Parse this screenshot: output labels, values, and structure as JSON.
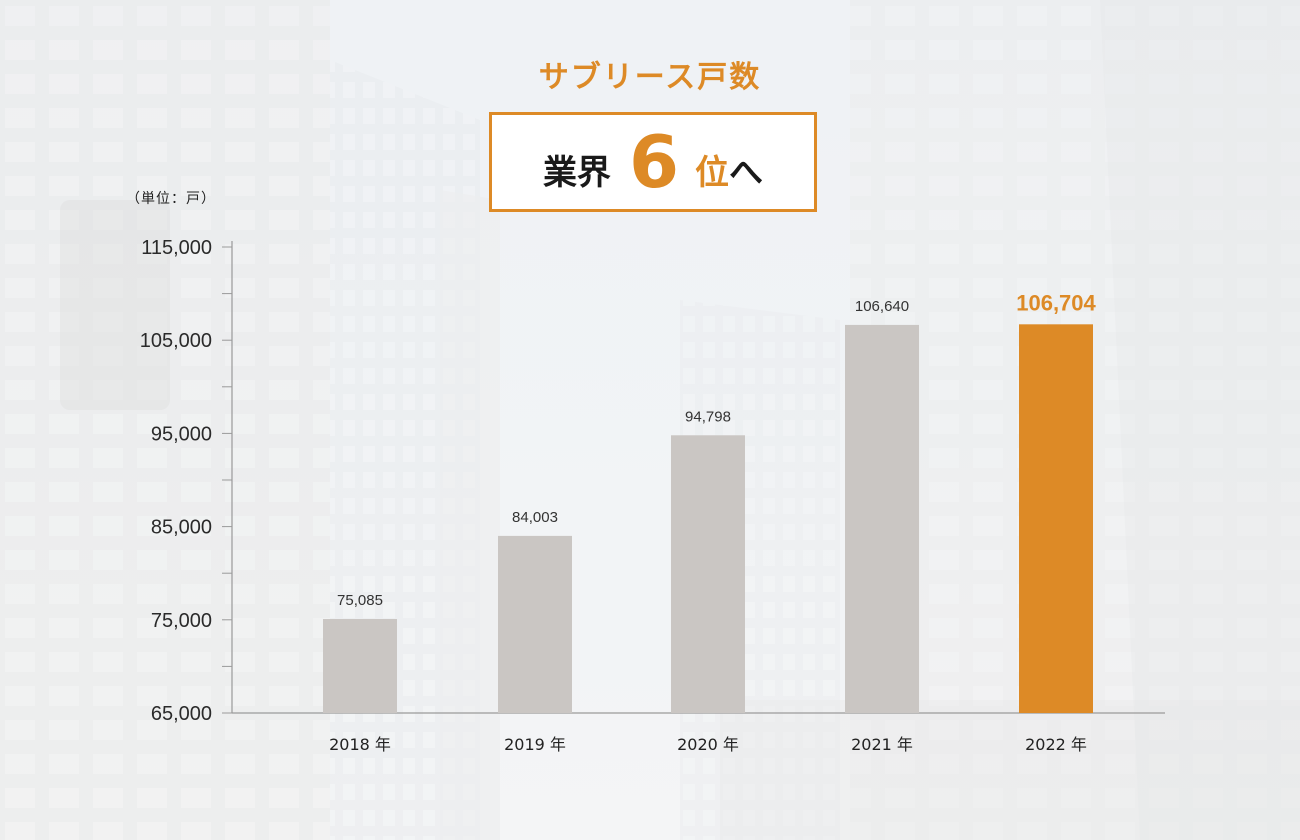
{
  "header": {
    "title": "サブリース戸数",
    "badge_prefix": "業界",
    "badge_rank": "6",
    "badge_suffix_orange": "位",
    "badge_suffix_black": "へ",
    "unit_note": "（単位：戸）"
  },
  "colors": {
    "accent": "#dd8a26",
    "bar": "#cac6c3",
    "axis": "#9a9a9a"
  },
  "chart_data": {
    "type": "bar",
    "categories": [
      "2018 年",
      "2019 年",
      "2020 年",
      "2021 年",
      "2022 年"
    ],
    "values": [
      75085,
      84003,
      94798,
      106640,
      106704
    ],
    "value_labels": [
      "75,085",
      "84,003",
      "94,798",
      "106,640",
      "106,704"
    ],
    "highlight_index": 4,
    "title": "サブリース戸数",
    "ylabel": "（単位：戸）",
    "ylim": [
      65000,
      115000
    ],
    "yticks": [
      65000,
      75000,
      85000,
      95000,
      105000,
      115000
    ],
    "ytick_labels": [
      "65,000",
      "75,000",
      "85,000",
      "95,000",
      "105,000",
      "115,000"
    ],
    "minor_step": 5000,
    "grid": false,
    "legend": "none"
  }
}
